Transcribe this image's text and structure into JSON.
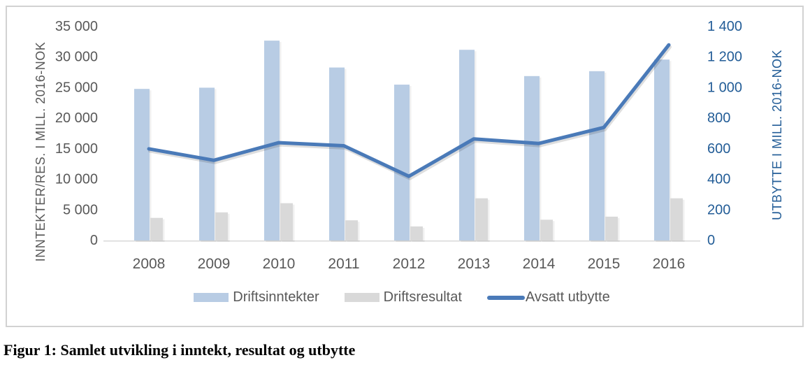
{
  "figure_caption": "Figur 1: Samlet utvikling i inntekt, resultat og utbytte",
  "chart_data": {
    "type": "bar",
    "subtype": "grouped-bars-with-line-combo",
    "categories": [
      "2008",
      "2009",
      "2010",
      "2011",
      "2012",
      "2013",
      "2014",
      "2015",
      "2016"
    ],
    "series": [
      {
        "name": "Driftsinntekter",
        "type": "bar",
        "axis": "left",
        "color": "#b8cce4",
        "values": [
          24800,
          25000,
          32700,
          28300,
          25500,
          31200,
          26900,
          27700,
          29600
        ]
      },
      {
        "name": "Driftsresultat",
        "type": "bar",
        "axis": "left",
        "color": "#d9d9d9",
        "values": [
          3700,
          4600,
          6100,
          3300,
          2300,
          6900,
          3400,
          3900,
          6900
        ]
      },
      {
        "name": "Avsatt utbytte",
        "type": "line",
        "axis": "right",
        "color": "#4a7ab8",
        "values": [
          600,
          525,
          640,
          620,
          420,
          665,
          635,
          740,
          1280
        ]
      }
    ],
    "left_axis": {
      "title": "INNTEKTER/RES. I MILL. 2016-NOK",
      "min": 0,
      "max": 35000,
      "step": 5000,
      "tick_labels": [
        "0",
        "5 000",
        "10 000",
        "15 000",
        "20 000",
        "25 000",
        "30 000",
        "35 000"
      ],
      "text_color": "#595959"
    },
    "right_axis": {
      "title": "UTBYTTE I MILL. 2016-NOK",
      "min": 0,
      "max": 1400,
      "step": 200,
      "tick_labels": [
        "0",
        "200",
        "400",
        "600",
        "800",
        "1 000",
        "1 200",
        "1 400"
      ],
      "text_color": "#235d97"
    },
    "x_axis": {
      "text_color": "#595959",
      "line_color": "#d9d9d9"
    },
    "grid": false,
    "legend_position": "bottom"
  }
}
